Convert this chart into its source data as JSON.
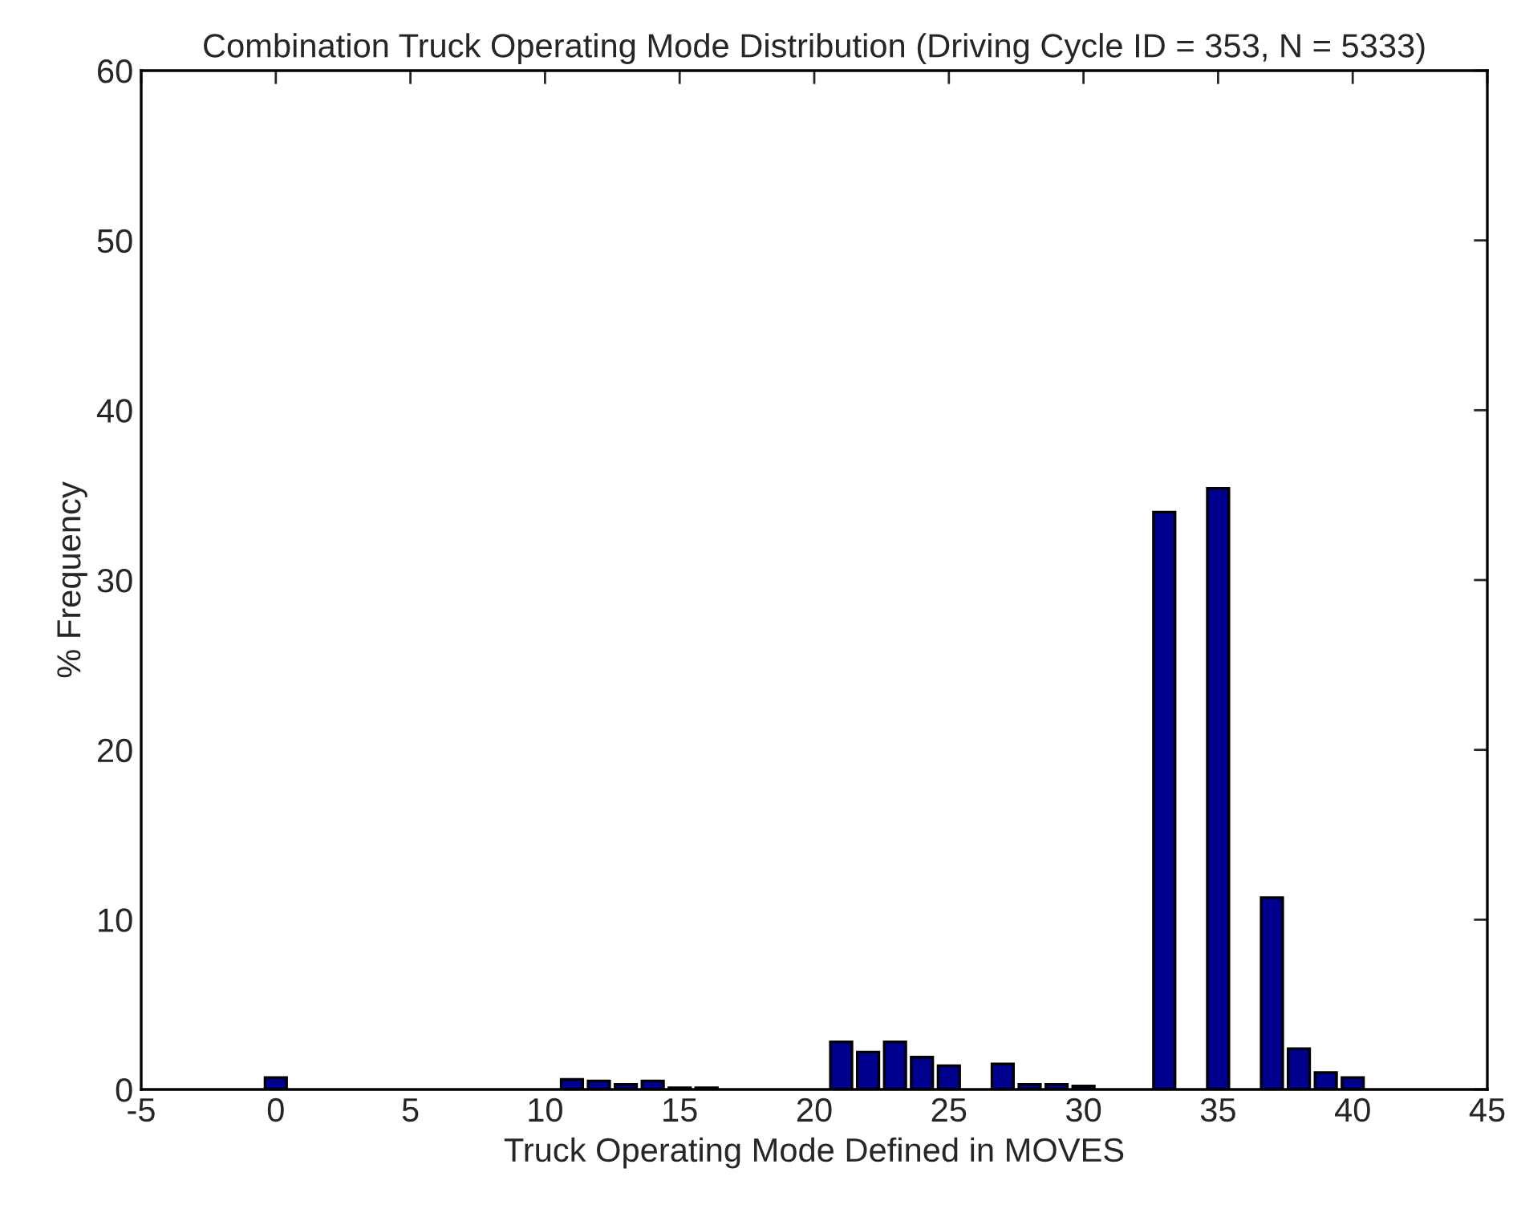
{
  "chart_data": {
    "type": "bar",
    "title": "Combination Truck Operating Mode Distribution (Driving Cycle ID = 353, N = 5333)",
    "xlabel": "Truck Operating Mode Defined in MOVES",
    "ylabel": "% Frequency",
    "x": [
      0,
      11,
      12,
      13,
      14,
      15,
      16,
      21,
      22,
      23,
      24,
      25,
      27,
      28,
      29,
      30,
      33,
      35,
      37,
      38,
      39,
      40
    ],
    "values": [
      0.7,
      0.6,
      0.5,
      0.3,
      0.5,
      0.1,
      0.1,
      2.8,
      2.2,
      2.8,
      1.9,
      1.4,
      1.5,
      0.3,
      0.3,
      0.2,
      34.0,
      35.4,
      11.3,
      2.4,
      1.0,
      0.7
    ],
    "color": "#00008f",
    "xlim": [
      -5,
      45
    ],
    "xticks": [
      -5,
      0,
      5,
      10,
      15,
      20,
      25,
      30,
      35,
      40,
      45
    ],
    "ylim": [
      0,
      60
    ],
    "yticks": [
      0,
      10,
      20,
      30,
      40,
      50,
      60
    ],
    "grid": false,
    "legend": false
  }
}
